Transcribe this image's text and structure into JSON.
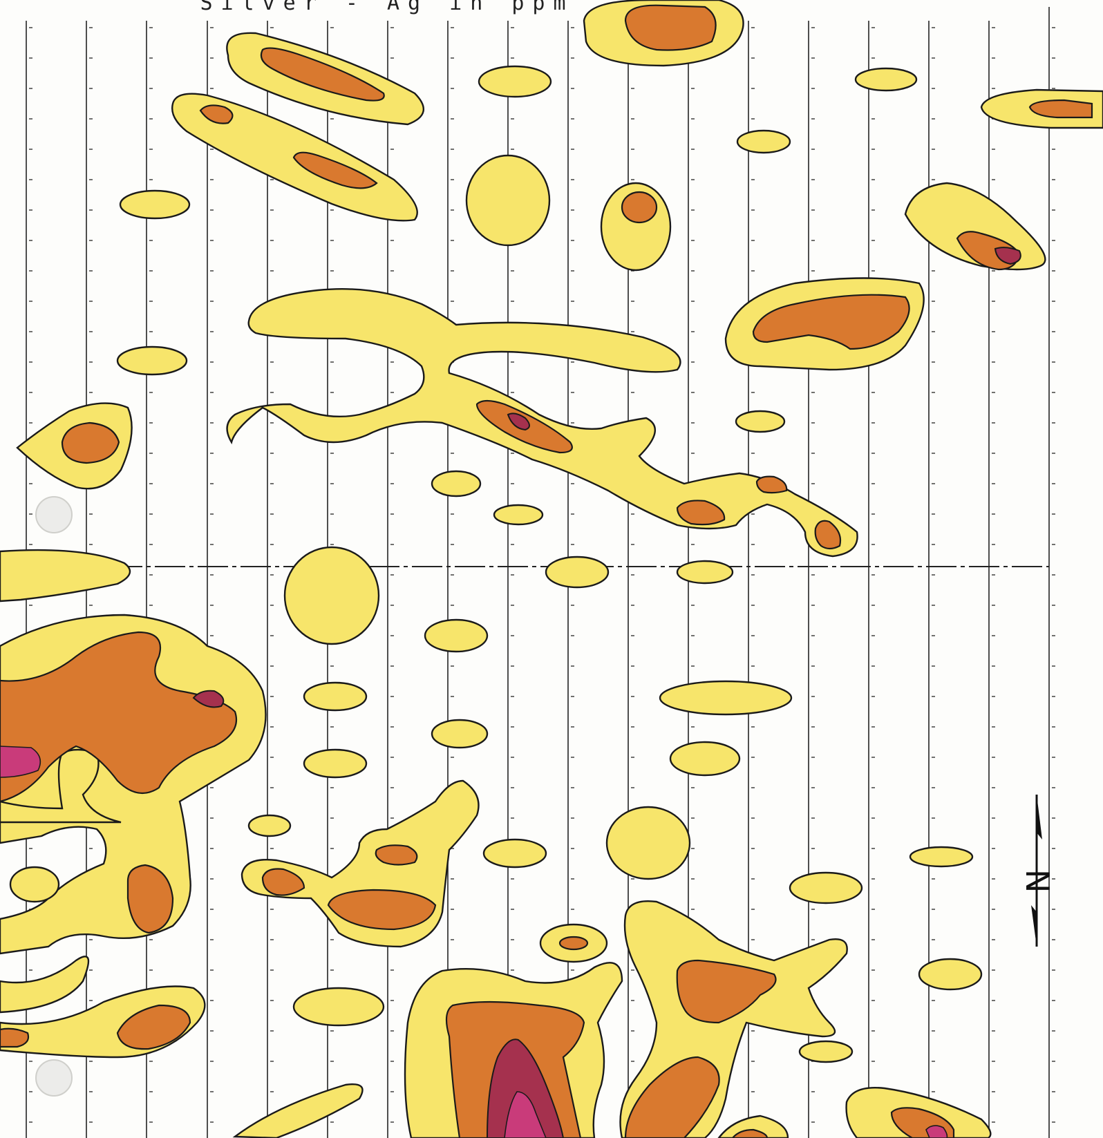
{
  "map": {
    "title": "Silver - Ag in ppm",
    "north_label": "N",
    "contour_fill_colors": {
      "level_1": "#f7e56b",
      "level_2": "#d9792f",
      "level_3": "#a5314e",
      "level_4": "#c93b7a"
    },
    "line_color": "#1a1a1a",
    "paper_color": "#fdfdfb",
    "grid": true,
    "north_arrow": "right side, pointing up"
  }
}
